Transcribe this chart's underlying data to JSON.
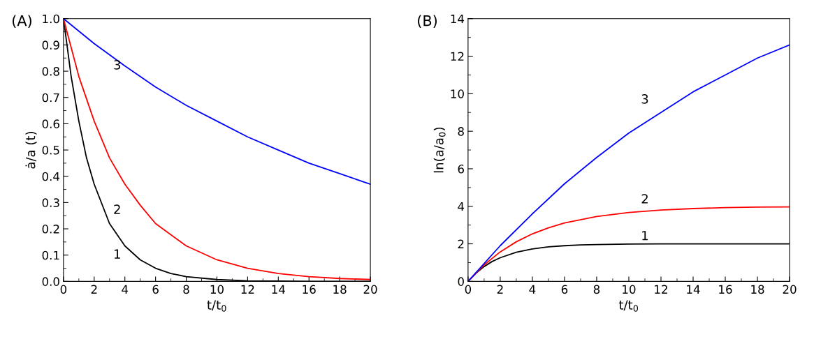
{
  "chart_data": [
    {
      "type": "line",
      "title": "(A)",
      "xlabel": "t/t$_{0}$",
      "ylabel": "ȧ/a (t)",
      "series": [
        {
          "color": "#000000",
          "x": [
            0,
            0.5,
            1,
            1.5,
            2,
            3,
            4,
            5,
            6,
            7,
            8,
            10,
            12,
            14,
            16,
            18,
            20
          ],
          "values": [
            1,
            0.78,
            0.61,
            0.47,
            0.37,
            0.22,
            0.135,
            0.082,
            0.05,
            0.03,
            0.018,
            0.007,
            0.002,
            0.001,
            0,
            0,
            0
          ]
        },
        {
          "color": "#ff0000",
          "x": [
            0,
            1,
            2,
            3,
            4,
            5,
            6,
            8,
            10,
            12,
            14,
            16,
            18,
            20
          ],
          "values": [
            1,
            0.78,
            0.61,
            0.47,
            0.37,
            0.29,
            0.22,
            0.135,
            0.082,
            0.05,
            0.03,
            0.018,
            0.011,
            0.007
          ]
        },
        {
          "color": "#0000ff",
          "x": [
            0,
            2,
            4,
            6,
            8,
            10,
            12,
            14,
            16,
            18,
            20
          ],
          "values": [
            1,
            0.905,
            0.82,
            0.74,
            0.67,
            0.61,
            0.55,
            0.5,
            0.45,
            0.41,
            0.37
          ]
        }
      ],
      "annotations": [
        "1",
        "2",
        "3"
      ],
      "xlim": [
        0,
        20
      ],
      "xticks": [
        0,
        2,
        4,
        6,
        8,
        10,
        12,
        14,
        16,
        18,
        20
      ],
      "ylim": [
        0,
        1
      ],
      "yticks": [
        {
          "value": 0,
          "label": "0.0"
        },
        {
          "value": 0.1,
          "label": "0.1"
        },
        {
          "value": 0.2,
          "label": "0.2"
        },
        {
          "value": 0.3,
          "label": "0.3"
        },
        {
          "value": 0.4,
          "label": "0.4"
        },
        {
          "value": 0.5,
          "label": "0.5"
        },
        {
          "value": 0.6,
          "label": "0.6"
        },
        {
          "value": 0.7,
          "label": "0.7"
        },
        {
          "value": 0.8,
          "label": "0.8"
        },
        {
          "value": 0.9,
          "label": "0.9"
        },
        {
          "value": 1,
          "label": "1.0"
        }
      ],
      "grid": false,
      "legend": false
    },
    {
      "type": "line",
      "title": "(B)",
      "xlabel": "t/t$_{0}$",
      "ylabel": "ln(a/a$_{0}$)",
      "series": [
        {
          "color": "#000000",
          "x": [
            0,
            0.5,
            1,
            1.5,
            2,
            3,
            4,
            5,
            6,
            7,
            8,
            10,
            12,
            14,
            16,
            18,
            20
          ],
          "values": [
            0,
            0.44,
            0.79,
            1.06,
            1.26,
            1.55,
            1.73,
            1.84,
            1.9,
            1.94,
            1.96,
            1.99,
            2,
            2,
            2,
            2,
            2
          ]
        },
        {
          "color": "#ff0000",
          "x": [
            0,
            1,
            2,
            3,
            4,
            5,
            6,
            8,
            10,
            12,
            14,
            16,
            18,
            20
          ],
          "values": [
            0,
            0.88,
            1.57,
            2.11,
            2.53,
            2.85,
            3.11,
            3.46,
            3.67,
            3.8,
            3.88,
            3.93,
            3.96,
            3.97
          ]
        },
        {
          "color": "#0000ff",
          "x": [
            0,
            2,
            4,
            6,
            8,
            10,
            12,
            14,
            16,
            18,
            20
          ],
          "values": [
            0,
            1.9,
            3.6,
            5.2,
            6.6,
            7.9,
            9,
            10.1,
            11,
            11.9,
            12.6
          ]
        }
      ],
      "annotations": [
        "1",
        "2",
        "3"
      ],
      "xlim": [
        0,
        20
      ],
      "xticks": [
        0,
        2,
        4,
        6,
        8,
        10,
        12,
        14,
        16,
        18,
        20
      ],
      "ylim": [
        0,
        14
      ],
      "yticks": [
        0,
        2,
        4,
        6,
        8,
        10,
        12,
        14
      ],
      "grid": false,
      "legend": false
    }
  ]
}
